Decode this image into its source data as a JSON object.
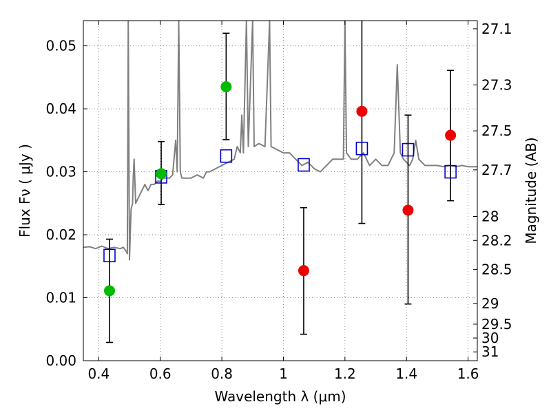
{
  "chart_data": {
    "type": "scatter",
    "title": "",
    "xlabel": "Wavelength  λ (μm)",
    "ylabel": "Flux  Fν  ( μJy )",
    "ylabel_right": "Magnitude (AB)",
    "xlim": [
      0.35,
      1.63
    ],
    "ylim": [
      0.0,
      0.054
    ],
    "grid": true,
    "x_ticks": [
      0.4,
      0.6,
      0.8,
      1.0,
      1.2,
      1.4,
      1.6
    ],
    "x_tick_labels": [
      "0.4",
      "0.6",
      "0.8",
      "1",
      "1.2",
      "1.4",
      "1.6"
    ],
    "y_ticks": [
      0.0,
      0.01,
      0.02,
      0.03,
      0.04,
      0.05
    ],
    "y_tick_labels": [
      "0.00",
      "0.01",
      "0.02",
      "0.03",
      "0.04",
      "0.05"
    ],
    "right_ticks": [
      {
        "label": "27.1",
        "flux": 0.0527
      },
      {
        "label": "27.3",
        "flux": 0.0438
      },
      {
        "label": "27.5",
        "flux": 0.0365
      },
      {
        "label": "27.7",
        "flux": 0.0303
      },
      {
        "label": "28",
        "flux": 0.0229
      },
      {
        "label": "28.2",
        "flux": 0.0191
      },
      {
        "label": "28.5",
        "flux": 0.0145
      },
      {
        "label": "29",
        "flux": 0.0091
      },
      {
        "label": "29.5",
        "flux": 0.0058
      },
      {
        "label": "30",
        "flux": 0.0036
      },
      {
        "label": "31",
        "flux": 0.0014
      }
    ],
    "colors": {
      "spectrum": "#808080",
      "model": "#0000cc",
      "detection": "#00bb00",
      "nondetection": "#ee0000",
      "errorbar": "#000000",
      "grid": "#888888"
    },
    "series": [
      {
        "kind": "spectrum",
        "points": [
          [
            0.35,
            0.018
          ],
          [
            0.37,
            0.0181
          ],
          [
            0.39,
            0.0178
          ],
          [
            0.41,
            0.0182
          ],
          [
            0.43,
            0.0178
          ],
          [
            0.45,
            0.018
          ],
          [
            0.47,
            0.0178
          ],
          [
            0.48,
            0.018
          ],
          [
            0.49,
            0.0173
          ],
          [
            0.493,
            0.017
          ],
          [
            0.496,
            0.054
          ],
          [
            0.5,
            0.016
          ],
          [
            0.505,
            0.024
          ],
          [
            0.51,
            0.025
          ],
          [
            0.512,
            0.029
          ],
          [
            0.515,
            0.032
          ],
          [
            0.52,
            0.025
          ],
          [
            0.53,
            0.026
          ],
          [
            0.54,
            0.027
          ],
          [
            0.55,
            0.028
          ],
          [
            0.56,
            0.027
          ],
          [
            0.57,
            0.028
          ],
          [
            0.58,
            0.028
          ],
          [
            0.59,
            0.0285
          ],
          [
            0.6,
            0.0285
          ],
          [
            0.61,
            0.029
          ],
          [
            0.62,
            0.029
          ],
          [
            0.63,
            0.029
          ],
          [
            0.64,
            0.0295
          ],
          [
            0.65,
            0.035
          ],
          [
            0.655,
            0.03
          ],
          [
            0.66,
            0.054
          ],
          [
            0.665,
            0.03
          ],
          [
            0.67,
            0.029
          ],
          [
            0.68,
            0.029
          ],
          [
            0.7,
            0.029
          ],
          [
            0.72,
            0.0295
          ],
          [
            0.74,
            0.029
          ],
          [
            0.75,
            0.03
          ],
          [
            0.76,
            0.03
          ],
          [
            0.78,
            0.0305
          ],
          [
            0.8,
            0.031
          ],
          [
            0.82,
            0.0315
          ],
          [
            0.84,
            0.032
          ],
          [
            0.85,
            0.034
          ],
          [
            0.86,
            0.033
          ],
          [
            0.865,
            0.039
          ],
          [
            0.87,
            0.033
          ],
          [
            0.88,
            0.054
          ],
          [
            0.886,
            0.034
          ],
          [
            0.9,
            0.054
          ],
          [
            0.905,
            0.034
          ],
          [
            0.92,
            0.0345
          ],
          [
            0.94,
            0.034
          ],
          [
            0.955,
            0.054
          ],
          [
            0.96,
            0.034
          ],
          [
            0.98,
            0.0335
          ],
          [
            1.0,
            0.033
          ],
          [
            1.02,
            0.033
          ],
          [
            1.04,
            0.032
          ],
          [
            1.06,
            0.031
          ],
          [
            1.08,
            0.0315
          ],
          [
            1.1,
            0.0305
          ],
          [
            1.12,
            0.03
          ],
          [
            1.14,
            0.031
          ],
          [
            1.16,
            0.032
          ],
          [
            1.18,
            0.032
          ],
          [
            1.195,
            0.032
          ],
          [
            1.2,
            0.054
          ],
          [
            1.205,
            0.033
          ],
          [
            1.22,
            0.032
          ],
          [
            1.24,
            0.032
          ],
          [
            1.26,
            0.033
          ],
          [
            1.28,
            0.031
          ],
          [
            1.3,
            0.032
          ],
          [
            1.32,
            0.031
          ],
          [
            1.34,
            0.031
          ],
          [
            1.36,
            0.033
          ],
          [
            1.37,
            0.047
          ],
          [
            1.38,
            0.033
          ],
          [
            1.39,
            0.032
          ],
          [
            1.4,
            0.0315
          ],
          [
            1.41,
            0.031
          ],
          [
            1.42,
            0.032
          ],
          [
            1.43,
            0.035
          ],
          [
            1.44,
            0.032
          ],
          [
            1.46,
            0.031
          ],
          [
            1.48,
            0.031
          ],
          [
            1.5,
            0.031
          ],
          [
            1.52,
            0.0308
          ],
          [
            1.54,
            0.031
          ],
          [
            1.56,
            0.0308
          ],
          [
            1.58,
            0.031
          ],
          [
            1.6,
            0.0308
          ],
          [
            1.63,
            0.0308
          ]
        ]
      },
      {
        "kind": "model",
        "name": "",
        "points": [
          [
            0.435,
            0.0167
          ],
          [
            0.603,
            0.0292
          ],
          [
            0.814,
            0.0325
          ],
          [
            1.066,
            0.0311
          ],
          [
            1.255,
            0.0337
          ],
          [
            1.405,
            0.0335
          ],
          [
            1.543,
            0.03
          ]
        ]
      },
      {
        "kind": "detection",
        "name": "",
        "points": [
          {
            "x": 0.435,
            "y": 0.0111,
            "lo": 0.0029,
            "hi": 0.0193
          },
          {
            "x": 0.603,
            "y": 0.0297,
            "lo": 0.0248,
            "hi": 0.0348
          },
          {
            "x": 0.814,
            "y": 0.0435,
            "lo": 0.0351,
            "hi": 0.052
          }
        ]
      },
      {
        "kind": "nondetection",
        "name": "",
        "points": [
          {
            "x": 1.066,
            "y": 0.0143,
            "lo": 0.0042,
            "hi": 0.0243
          },
          {
            "x": 1.255,
            "y": 0.0396,
            "lo": 0.0218,
            "hi": 0.056
          },
          {
            "x": 1.405,
            "y": 0.0239,
            "lo": 0.009,
            "hi": 0.039
          },
          {
            "x": 1.543,
            "y": 0.0358,
            "lo": 0.0254,
            "hi": 0.0461
          }
        ]
      }
    ]
  }
}
